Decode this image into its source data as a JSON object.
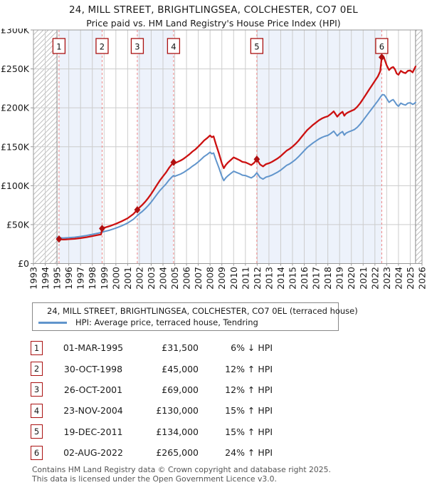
{
  "title": "24, MILL STREET, BRIGHTLINGSEA, COLCHESTER, CO7 0EL",
  "subtitle": "Price paid vs. HM Land Registry's House Price Index (HPI)",
  "colors": {
    "property": "#cc1111",
    "hpi": "#6195cc",
    "marker": "#b01010",
    "dashed": "#ee8585",
    "band": "#edf2fb",
    "grid": "#cccccc",
    "hatch": "#c0c0c0",
    "border": "#999999",
    "edge": "#8a8a8a",
    "box_border": "#aa1111",
    "text": "#1a1a1a"
  },
  "chart_data": {
    "type": "line",
    "x_range": [
      1993,
      2026
    ],
    "y_range": [
      0,
      300000
    ],
    "data_start": 1995.0,
    "data_end": 2025.45,
    "grid": true,
    "y_ticks": [
      {
        "value": 0,
        "label": "£0"
      },
      {
        "value": 50000,
        "label": "£50K"
      },
      {
        "value": 100000,
        "label": "£100K"
      },
      {
        "value": 150000,
        "label": "£150K"
      },
      {
        "value": 200000,
        "label": "£200K"
      },
      {
        "value": 250000,
        "label": "£250K"
      },
      {
        "value": 300000,
        "label": "£300K"
      }
    ],
    "shaded_bands": [
      [
        1995.17,
        1998.83
      ],
      [
        2001.82,
        2004.9
      ],
      [
        2011.97,
        2022.58
      ]
    ],
    "sales": [
      {
        "n": "1",
        "x": 1995.17,
        "price": 31500
      },
      {
        "n": "2",
        "x": 1998.83,
        "price": 45000
      },
      {
        "n": "3",
        "x": 2001.82,
        "price": 69000
      },
      {
        "n": "4",
        "x": 2004.9,
        "price": 130000
      },
      {
        "n": "5",
        "x": 2011.97,
        "price": 134000
      },
      {
        "n": "6",
        "x": 2022.58,
        "price": 265000
      }
    ],
    "series": [
      {
        "name": "24, MILL STREET, BRIGHTLINGSEA, COLCHESTER, CO7 0EL (terraced house)",
        "color_key": "property",
        "points": [
          [
            1995.0,
            31500
          ],
          [
            1995.25,
            31200
          ],
          [
            1995.5,
            30800
          ],
          [
            1995.75,
            31000
          ],
          [
            1996.0,
            31200
          ],
          [
            1996.5,
            31800
          ],
          [
            1997.0,
            32700
          ],
          [
            1997.5,
            33800
          ],
          [
            1998.0,
            35300
          ],
          [
            1998.5,
            36700
          ],
          [
            1998.75,
            37500
          ],
          [
            1998.83,
            45000
          ],
          [
            1999.0,
            45900
          ],
          [
            1999.5,
            48200
          ],
          [
            2000.0,
            51000
          ],
          [
            2000.5,
            54300
          ],
          [
            2001.0,
            58200
          ],
          [
            2001.5,
            63800
          ],
          [
            2001.82,
            69000
          ],
          [
            2002.0,
            71900
          ],
          [
            2002.25,
            75400
          ],
          [
            2002.5,
            79500
          ],
          [
            2002.75,
            84200
          ],
          [
            2003.0,
            89500
          ],
          [
            2003.25,
            95300
          ],
          [
            2003.5,
            101200
          ],
          [
            2003.75,
            107000
          ],
          [
            2004.0,
            111900
          ],
          [
            2004.25,
            116700
          ],
          [
            2004.5,
            122600
          ],
          [
            2004.75,
            127400
          ],
          [
            2004.9,
            130000
          ],
          [
            2005.0,
            128800
          ],
          [
            2005.25,
            130500
          ],
          [
            2005.5,
            132300
          ],
          [
            2005.75,
            134600
          ],
          [
            2006.0,
            137400
          ],
          [
            2006.25,
            140300
          ],
          [
            2006.5,
            143800
          ],
          [
            2006.75,
            146600
          ],
          [
            2007.0,
            150100
          ],
          [
            2007.25,
            154100
          ],
          [
            2007.5,
            158100
          ],
          [
            2007.75,
            161000
          ],
          [
            2008.0,
            164500
          ],
          [
            2008.15,
            162200
          ],
          [
            2008.3,
            163300
          ],
          [
            2008.5,
            153000
          ],
          [
            2008.75,
            141500
          ],
          [
            2009.0,
            128800
          ],
          [
            2009.17,
            122500
          ],
          [
            2009.33,
            126500
          ],
          [
            2009.5,
            129400
          ],
          [
            2009.75,
            132800
          ],
          [
            2010.0,
            136300
          ],
          [
            2010.25,
            134600
          ],
          [
            2010.5,
            132800
          ],
          [
            2010.75,
            130500
          ],
          [
            2011.0,
            130000
          ],
          [
            2011.25,
            128200
          ],
          [
            2011.5,
            126500
          ],
          [
            2011.75,
            129400
          ],
          [
            2011.97,
            134000
          ],
          [
            2012.25,
            127100
          ],
          [
            2012.5,
            124800
          ],
          [
            2012.75,
            127700
          ],
          [
            2013.0,
            128800
          ],
          [
            2013.25,
            130500
          ],
          [
            2013.5,
            132800
          ],
          [
            2013.75,
            135100
          ],
          [
            2014.0,
            138000
          ],
          [
            2014.25,
            141500
          ],
          [
            2014.5,
            144900
          ],
          [
            2014.75,
            147200
          ],
          [
            2015.0,
            150100
          ],
          [
            2015.25,
            153500
          ],
          [
            2015.5,
            157600
          ],
          [
            2015.75,
            162200
          ],
          [
            2016.0,
            166800
          ],
          [
            2016.25,
            171400
          ],
          [
            2016.5,
            174800
          ],
          [
            2016.75,
            178300
          ],
          [
            2017.0,
            181100
          ],
          [
            2017.25,
            184000
          ],
          [
            2017.5,
            186300
          ],
          [
            2017.75,
            188000
          ],
          [
            2018.0,
            189200
          ],
          [
            2018.25,
            192100
          ],
          [
            2018.5,
            195500
          ],
          [
            2018.65,
            192100
          ],
          [
            2018.8,
            188600
          ],
          [
            2019.0,
            192100
          ],
          [
            2019.25,
            194900
          ],
          [
            2019.4,
            189800
          ],
          [
            2019.55,
            192600
          ],
          [
            2019.75,
            194400
          ],
          [
            2020.0,
            196100
          ],
          [
            2020.25,
            197800
          ],
          [
            2020.5,
            201300
          ],
          [
            2020.75,
            205900
          ],
          [
            2021.0,
            211600
          ],
          [
            2021.25,
            217400
          ],
          [
            2021.5,
            223100
          ],
          [
            2021.75,
            228900
          ],
          [
            2022.0,
            234600
          ],
          [
            2022.25,
            240400
          ],
          [
            2022.45,
            247000
          ],
          [
            2022.58,
            265000
          ],
          [
            2022.7,
            266500
          ],
          [
            2022.8,
            263000
          ],
          [
            2023.0,
            254500
          ],
          [
            2023.2,
            248500
          ],
          [
            2023.4,
            251500
          ],
          [
            2023.55,
            252500
          ],
          [
            2023.7,
            249500
          ],
          [
            2023.85,
            244000
          ],
          [
            2024.0,
            242500
          ],
          [
            2024.2,
            247500
          ],
          [
            2024.4,
            245500
          ],
          [
            2024.6,
            244500
          ],
          [
            2024.8,
            247500
          ],
          [
            2025.0,
            248000
          ],
          [
            2025.2,
            245500
          ],
          [
            2025.35,
            250000
          ],
          [
            2025.45,
            253000
          ]
        ]
      },
      {
        "name": "HPI: Average price, terraced house, Tendring",
        "color_key": "hpi",
        "points": [
          [
            1995.0,
            33500
          ],
          [
            1995.25,
            33200
          ],
          [
            1995.5,
            32800
          ],
          [
            1995.75,
            33000
          ],
          [
            1996.0,
            33200
          ],
          [
            1996.5,
            33800
          ],
          [
            1997.0,
            34800
          ],
          [
            1997.5,
            36000
          ],
          [
            1998.0,
            37500
          ],
          [
            1998.5,
            39000
          ],
          [
            1998.83,
            40200
          ],
          [
            1999.0,
            41000
          ],
          [
            1999.5,
            43000
          ],
          [
            2000.0,
            45500
          ],
          [
            2000.5,
            48500
          ],
          [
            2001.0,
            52000
          ],
          [
            2001.5,
            57000
          ],
          [
            2001.82,
            61600
          ],
          [
            2002.0,
            64000
          ],
          [
            2002.25,
            67000
          ],
          [
            2002.5,
            70500
          ],
          [
            2002.75,
            74500
          ],
          [
            2003.0,
            79000
          ],
          [
            2003.25,
            84000
          ],
          [
            2003.5,
            89000
          ],
          [
            2003.75,
            94000
          ],
          [
            2004.0,
            98000
          ],
          [
            2004.25,
            102000
          ],
          [
            2004.5,
            107000
          ],
          [
            2004.75,
            111000
          ],
          [
            2004.9,
            113000
          ],
          [
            2005.0,
            112000
          ],
          [
            2005.25,
            113500
          ],
          [
            2005.5,
            115000
          ],
          [
            2005.75,
            117000
          ],
          [
            2006.0,
            119500
          ],
          [
            2006.25,
            122000
          ],
          [
            2006.5,
            125000
          ],
          [
            2006.75,
            127500
          ],
          [
            2007.0,
            130500
          ],
          [
            2007.25,
            134000
          ],
          [
            2007.5,
            137500
          ],
          [
            2007.75,
            140000
          ],
          [
            2008.0,
            143000
          ],
          [
            2008.15,
            141000
          ],
          [
            2008.3,
            142000
          ],
          [
            2008.5,
            133000
          ],
          [
            2008.75,
            123000
          ],
          [
            2009.0,
            112000
          ],
          [
            2009.17,
            106500
          ],
          [
            2009.33,
            110000
          ],
          [
            2009.5,
            112500
          ],
          [
            2009.75,
            115500
          ],
          [
            2010.0,
            118500
          ],
          [
            2010.25,
            117000
          ],
          [
            2010.5,
            115500
          ],
          [
            2010.75,
            113500
          ],
          [
            2011.0,
            113000
          ],
          [
            2011.25,
            111500
          ],
          [
            2011.5,
            110000
          ],
          [
            2011.75,
            112500
          ],
          [
            2011.97,
            116500
          ],
          [
            2012.25,
            110500
          ],
          [
            2012.5,
            108500
          ],
          [
            2012.75,
            111000
          ],
          [
            2013.0,
            112000
          ],
          [
            2013.25,
            113500
          ],
          [
            2013.5,
            115500
          ],
          [
            2013.75,
            117500
          ],
          [
            2014.0,
            120000
          ],
          [
            2014.25,
            123000
          ],
          [
            2014.5,
            126000
          ],
          [
            2014.75,
            128000
          ],
          [
            2015.0,
            130500
          ],
          [
            2015.25,
            133500
          ],
          [
            2015.5,
            137000
          ],
          [
            2015.75,
            141000
          ],
          [
            2016.0,
            145000
          ],
          [
            2016.25,
            149000
          ],
          [
            2016.5,
            152000
          ],
          [
            2016.75,
            155000
          ],
          [
            2017.0,
            157500
          ],
          [
            2017.25,
            160000
          ],
          [
            2017.5,
            162000
          ],
          [
            2017.75,
            163500
          ],
          [
            2018.0,
            164500
          ],
          [
            2018.25,
            167000
          ],
          [
            2018.5,
            170000
          ],
          [
            2018.65,
            167000
          ],
          [
            2018.8,
            164000
          ],
          [
            2019.0,
            167000
          ],
          [
            2019.25,
            169500
          ],
          [
            2019.4,
            165000
          ],
          [
            2019.55,
            167500
          ],
          [
            2019.75,
            169000
          ],
          [
            2020.0,
            170500
          ],
          [
            2020.25,
            172000
          ],
          [
            2020.5,
            175000
          ],
          [
            2020.75,
            179000
          ],
          [
            2021.0,
            184000
          ],
          [
            2021.25,
            189000
          ],
          [
            2021.5,
            194000
          ],
          [
            2021.75,
            199000
          ],
          [
            2022.0,
            204000
          ],
          [
            2022.25,
            209000
          ],
          [
            2022.5,
            214500
          ],
          [
            2022.65,
            217000
          ],
          [
            2022.8,
            216500
          ],
          [
            2023.0,
            212000
          ],
          [
            2023.2,
            207000
          ],
          [
            2023.4,
            209500
          ],
          [
            2023.55,
            210500
          ],
          [
            2023.7,
            207500
          ],
          [
            2023.85,
            204000
          ],
          [
            2024.0,
            202000
          ],
          [
            2024.2,
            206000
          ],
          [
            2024.4,
            204500
          ],
          [
            2024.6,
            203500
          ],
          [
            2024.8,
            206000
          ],
          [
            2025.0,
            206500
          ],
          [
            2025.2,
            204500
          ],
          [
            2025.35,
            205500
          ],
          [
            2025.45,
            207000
          ]
        ]
      }
    ]
  },
  "legend": {
    "items": [
      {
        "label": "24, MILL STREET, BRIGHTLINGSEA, COLCHESTER, CO7 0EL (terraced house)",
        "color_key": "property"
      },
      {
        "label": "HPI: Average price, terraced house, Tendring",
        "color_key": "hpi"
      }
    ]
  },
  "table": {
    "rows": [
      {
        "num": "1",
        "date": "01-MAR-1995",
        "price": "£31,500",
        "hpi_comparison": "6% ↓ HPI"
      },
      {
        "num": "2",
        "date": "30-OCT-1998",
        "price": "£45,000",
        "hpi_comparison": "12% ↑ HPI"
      },
      {
        "num": "3",
        "date": "26-OCT-2001",
        "price": "£69,000",
        "hpi_comparison": "12% ↑ HPI"
      },
      {
        "num": "4",
        "date": "23-NOV-2004",
        "price": "£130,000",
        "hpi_comparison": "15% ↑ HPI"
      },
      {
        "num": "5",
        "date": "19-DEC-2011",
        "price": "£134,000",
        "hpi_comparison": "15% ↑ HPI"
      },
      {
        "num": "6",
        "date": "02-AUG-2022",
        "price": "£265,000",
        "hpi_comparison": "24% ↑ HPI"
      }
    ]
  },
  "footer": {
    "line1": "Contains HM Land Registry data © Crown copyright and database right 2025.",
    "line2": "This data is licensed under the Open Government Licence v3.0."
  }
}
